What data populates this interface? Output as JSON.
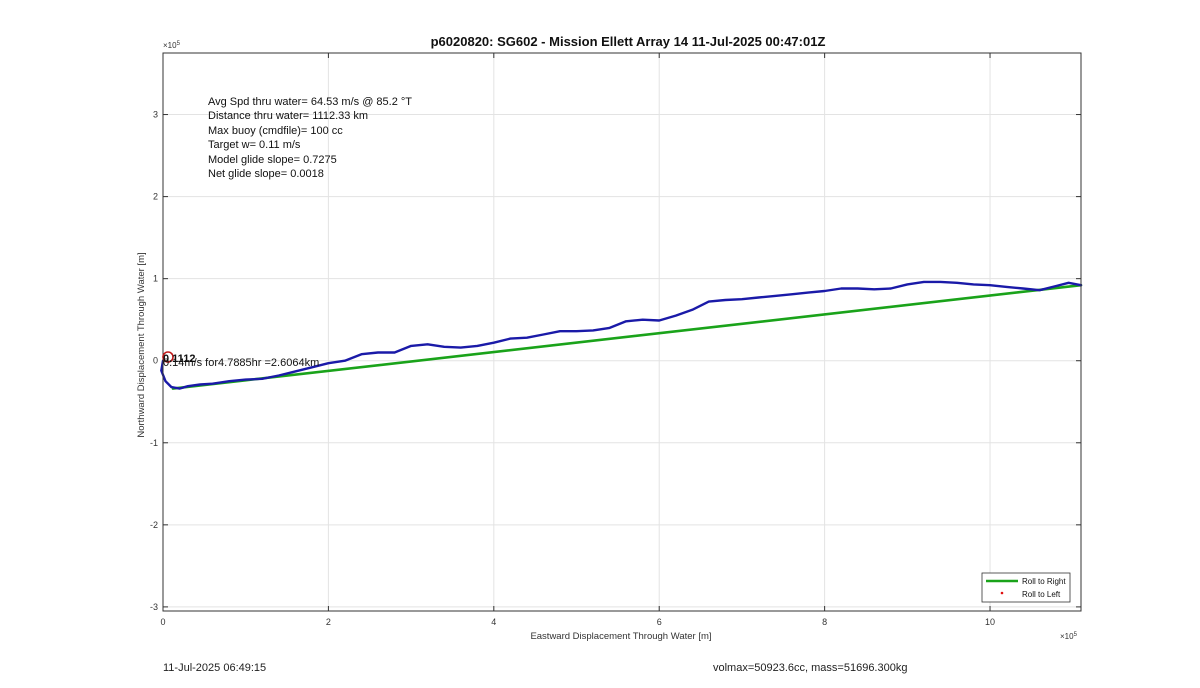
{
  "chart_data": {
    "type": "line",
    "title": "p6020820: SG602 - Mission Ellett Array 14 11-Jul-2025 00:47:01Z",
    "xlabel": "Eastward Displacement Through Water [m]",
    "ylabel": "Northward Displacement Through Water [m]",
    "x_exponent": "×10",
    "x_exponent_power": "5",
    "y_exponent": "×10",
    "y_exponent_power": "5",
    "xlim": [
      0,
      11.1
    ],
    "ylim": [
      -3.05,
      3.75
    ],
    "x_ticks": [
      "0",
      "2",
      "4",
      "6",
      "8",
      "10"
    ],
    "x_tick_values": [
      0,
      2,
      4,
      6,
      8,
      10
    ],
    "y_ticks": [
      "-3",
      "-2",
      "-1",
      "0",
      "1",
      "2",
      "3"
    ],
    "y_tick_values": [
      -3,
      -2,
      -1,
      0,
      1,
      2,
      3
    ],
    "grid": true,
    "legend_position": "bottom-right",
    "annotations": [
      "Avg Spd thru water= 64.53 m/s @  85.2 °T",
      "Distance thru water= 1112.33 km",
      "Max buoy (cmdfile)= 100 cc",
      "Target w= 0.11 m/s",
      "Model glide slope= 0.7275",
      "Net glide slope= 0.0018"
    ],
    "point_label": "0.14m/s for4.7885hr =2.6064km",
    "point_label_overlap": "0.1112",
    "series": [
      {
        "name": "Roll to Right",
        "color": "#1aa31a",
        "style": "line",
        "x": [
          0.12,
          11.1
        ],
        "y": [
          -0.34,
          0.92
        ]
      },
      {
        "name": "Roll to Left",
        "color": "#e01010",
        "style": "marker",
        "x": [],
        "y": []
      },
      {
        "name": "",
        "color": "#1a1aa8",
        "style": "line",
        "x": [
          0.0,
          -0.02,
          0.03,
          0.1,
          0.2,
          0.3,
          0.45,
          0.6,
          0.8,
          1.0,
          1.2,
          1.4,
          1.6,
          1.8,
          2.0,
          2.2,
          2.4,
          2.6,
          2.8,
          3.0,
          3.2,
          3.4,
          3.6,
          3.8,
          4.0,
          4.2,
          4.4,
          4.6,
          4.8,
          5.0,
          5.2,
          5.4,
          5.6,
          5.8,
          6.0,
          6.2,
          6.4,
          6.6,
          6.8,
          7.0,
          7.2,
          7.4,
          7.6,
          7.8,
          8.0,
          8.2,
          8.4,
          8.6,
          8.8,
          9.0,
          9.2,
          9.4,
          9.6,
          9.8,
          10.0,
          10.2,
          10.4,
          10.6,
          10.8,
          10.95,
          11.1
        ],
        "y": [
          0.0,
          -0.12,
          -0.25,
          -0.32,
          -0.34,
          -0.31,
          -0.29,
          -0.28,
          -0.25,
          -0.23,
          -0.22,
          -0.18,
          -0.13,
          -0.08,
          -0.03,
          0.0,
          0.08,
          0.1,
          0.1,
          0.18,
          0.2,
          0.17,
          0.16,
          0.18,
          0.22,
          0.27,
          0.28,
          0.32,
          0.36,
          0.36,
          0.37,
          0.4,
          0.48,
          0.5,
          0.49,
          0.55,
          0.62,
          0.72,
          0.74,
          0.75,
          0.77,
          0.79,
          0.81,
          0.83,
          0.85,
          0.88,
          0.88,
          0.87,
          0.88,
          0.93,
          0.96,
          0.96,
          0.95,
          0.93,
          0.92,
          0.9,
          0.88,
          0.86,
          0.91,
          0.95,
          0.92
        ]
      }
    ]
  },
  "footer": {
    "left": "11-Jul-2025 06:49:15",
    "right": "volmax=50923.6cc, mass=51696.300kg"
  }
}
